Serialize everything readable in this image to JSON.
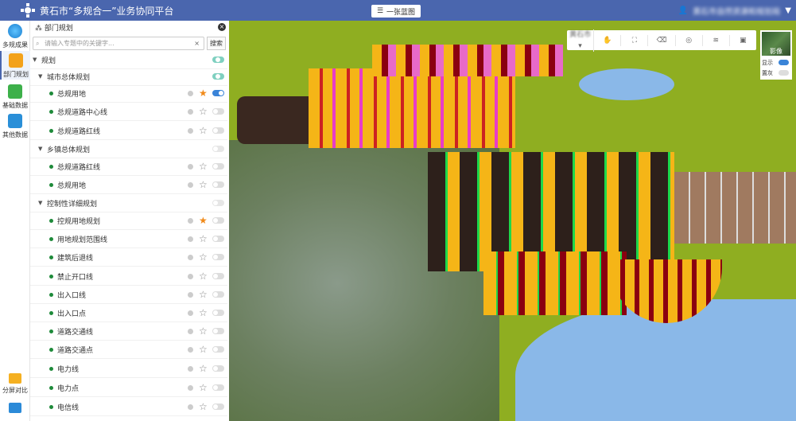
{
  "header": {
    "title": "黄石市“多规合一”业务协同平台",
    "center_button": "一张蓝图",
    "user_name": "黄石市自然资源和规划局"
  },
  "rail": [
    {
      "label": "多规成果",
      "icon": "globe-icon"
    },
    {
      "label": "部门规划",
      "icon": "cubes-icon",
      "active": true
    },
    {
      "label": "基础数据",
      "icon": "cubes-green-icon"
    },
    {
      "label": "其他数据",
      "icon": "cubes-blue-icon"
    },
    {
      "label": "分屏对比",
      "icon": "folder-icon"
    },
    {
      "label": "",
      "icon": "favorite-folder-icon"
    }
  ],
  "panel": {
    "title": "部门规划",
    "search_placeholder": "请输入专题中的关键字...",
    "search_button": "搜索",
    "rows": [
      {
        "label": "规划",
        "level": 0,
        "type": "group",
        "on": true
      },
      {
        "label": "城市总体规划",
        "level": 1,
        "type": "group",
        "on": true
      },
      {
        "label": "总规用地",
        "level": 2,
        "starred": true,
        "on": true
      },
      {
        "label": "总规道路中心线",
        "level": 2,
        "starred": false,
        "on": false
      },
      {
        "label": "总规道路红线",
        "level": 2,
        "starred": false,
        "on": false
      },
      {
        "label": "乡镇总体规划",
        "level": 1,
        "type": "group",
        "on": false
      },
      {
        "label": "总规道路红线",
        "level": 2,
        "starred": false,
        "on": false
      },
      {
        "label": "总规用地",
        "level": 2,
        "starred": false,
        "on": false
      },
      {
        "label": "控制性详细规划",
        "level": 1,
        "type": "group",
        "on": false
      },
      {
        "label": "控规用地规划",
        "level": 2,
        "starred": true,
        "on": false
      },
      {
        "label": "用地规划范围线",
        "level": 2,
        "starred": false,
        "on": false
      },
      {
        "label": "建筑后退线",
        "level": 2,
        "starred": false,
        "on": false
      },
      {
        "label": "禁止开口线",
        "level": 2,
        "starred": false,
        "on": false
      },
      {
        "label": "出入口线",
        "level": 2,
        "starred": false,
        "on": false
      },
      {
        "label": "出入口点",
        "level": 2,
        "starred": false,
        "on": false
      },
      {
        "label": "道路交通线",
        "level": 2,
        "starred": false,
        "on": false
      },
      {
        "label": "道路交通点",
        "level": 2,
        "starred": false,
        "on": false
      },
      {
        "label": "电力线",
        "level": 2,
        "starred": false,
        "on": false
      },
      {
        "label": "电力点",
        "level": 2,
        "starred": false,
        "on": false
      },
      {
        "label": "电信线",
        "level": 2,
        "starred": false,
        "on": false
      }
    ]
  },
  "map": {
    "region_select": "黄石市",
    "tools": [
      "hand-icon",
      "fullscreen-icon",
      "eraser-icon",
      "compass-icon",
      "layers-icon",
      "toolbox-icon"
    ],
    "basemap": {
      "label": "影像",
      "show_label": "显示",
      "show_on": true,
      "gray_label": "置灰",
      "gray_on": false
    }
  },
  "colors": {
    "header": "#4a66ae",
    "accent": "#3a84d8",
    "star": "#f08a1a"
  }
}
